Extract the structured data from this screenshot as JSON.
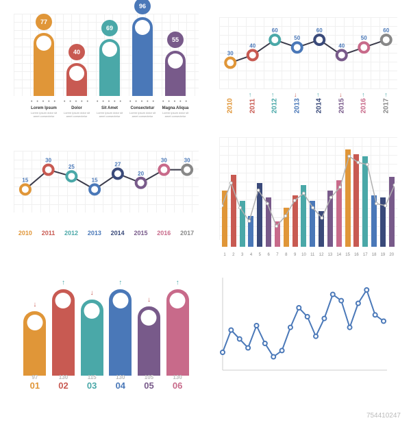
{
  "palette": {
    "orange": "#e09638",
    "red": "#c85a52",
    "teal": "#4aa8a8",
    "blue": "#4a78b8",
    "navy": "#3a4a7a",
    "purple": "#785a8a",
    "pink": "#c86a8a",
    "grey": "#888888",
    "grid": "#f0f0f0",
    "bg": "#ffffff"
  },
  "panel1": {
    "type": "bar",
    "ylim": [
      0,
      100
    ],
    "bars": [
      {
        "value": 77,
        "color": "#e09638",
        "label": "Lorem Ipsum"
      },
      {
        "value": 40,
        "color": "#c85a52",
        "label": "Dolor"
      },
      {
        "value": 69,
        "color": "#4aa8a8",
        "label": "Sit Amet"
      },
      {
        "value": 96,
        "color": "#4a78b8",
        "label": "Consectetur"
      },
      {
        "value": 55,
        "color": "#785a8a",
        "label": "Magna Aliqua"
      }
    ],
    "desc_text": "Lorem ipsum dolor sit amet consectetur",
    "dots": "• • • • •"
  },
  "panel2": {
    "type": "line",
    "ylim": [
      0,
      80
    ],
    "years": [
      "2010",
      "2011",
      "2012",
      "2013",
      "2014",
      "2015",
      "2016",
      "2017"
    ],
    "year_colors": [
      "#e09638",
      "#c85a52",
      "#4aa8a8",
      "#4a78b8",
      "#3a4a7a",
      "#785a8a",
      "#c86a8a",
      "#888888"
    ],
    "values": [
      30,
      40,
      60,
      50,
      60,
      40,
      50,
      60
    ],
    "arrows": [
      "",
      "↑",
      "↑",
      "↓",
      "↑",
      "↓",
      "↑",
      "↑"
    ],
    "marker_colors": [
      "#e09638",
      "#c85a52",
      "#4aa8a8",
      "#4a78b8",
      "#3a4a7a",
      "#785a8a",
      "#c86a8a",
      "#888888"
    ],
    "line_color": "#3a3a4a",
    "value_label_color": "#4a78b8"
  },
  "panel3": {
    "type": "line",
    "ylim": [
      0,
      40
    ],
    "years": [
      "2010",
      "2011",
      "2012",
      "2013",
      "2014",
      "2015",
      "2016",
      "2017"
    ],
    "year_colors": [
      "#e09638",
      "#c85a52",
      "#4aa8a8",
      "#4a78b8",
      "#3a4a7a",
      "#785a8a",
      "#c86a8a",
      "#888888"
    ],
    "values": [
      15,
      30,
      25,
      15,
      27,
      20,
      30,
      30
    ],
    "marker_colors": [
      "#e09638",
      "#c85a52",
      "#4aa8a8",
      "#4a78b8",
      "#3a4a7a",
      "#785a8a",
      "#c86a8a",
      "#888888"
    ],
    "line_color": "#3a3a4a",
    "value_label_color": "#4a78b8"
  },
  "panel4": {
    "type": "bar+line",
    "ylim": [
      0,
      100
    ],
    "x_labels": [
      "1",
      "2",
      "3",
      "4",
      "5",
      "6",
      "7",
      "8",
      "9",
      "10",
      "11",
      "12",
      "13",
      "14",
      "15",
      "16",
      "17",
      "18",
      "19",
      "20"
    ],
    "bars": [
      55,
      70,
      45,
      30,
      62,
      48,
      25,
      38,
      50,
      60,
      45,
      35,
      55,
      65,
      95,
      90,
      88,
      50,
      48,
      68
    ],
    "bar_colors": [
      "#e09638",
      "#c85a52",
      "#4aa8a8",
      "#4a78b8",
      "#3a4a7a",
      "#785a8a",
      "#c86a8a",
      "#e09638",
      "#c85a52",
      "#4aa8a8",
      "#4a78b8",
      "#3a4a7a",
      "#785a8a",
      "#c86a8a",
      "#e09638",
      "#c85a52",
      "#4aa8a8",
      "#4a78b8",
      "#3a4a7a",
      "#785a8a"
    ],
    "line_values": [
      40,
      62,
      38,
      25,
      55,
      42,
      20,
      30,
      45,
      52,
      38,
      28,
      48,
      58,
      88,
      82,
      80,
      42,
      40,
      60
    ],
    "line_color": "#b0b0b0"
  },
  "panel5": {
    "type": "bar",
    "ylim": [
      0,
      150
    ],
    "bars": [
      {
        "idx": "01",
        "value": 97,
        "color": "#e09638",
        "arrow": "↓",
        "arrow_color": "#c85a52"
      },
      {
        "idx": "02",
        "value": 130,
        "color": "#c85a52",
        "arrow": "↑",
        "arrow_color": "#4aa8a8"
      },
      {
        "idx": "03",
        "value": 115,
        "color": "#4aa8a8",
        "arrow": "↓",
        "arrow_color": "#c85a52"
      },
      {
        "idx": "04",
        "value": 130,
        "color": "#4a78b8",
        "arrow": "↑",
        "arrow_color": "#4aa8a8"
      },
      {
        "idx": "05",
        "value": 105,
        "color": "#785a8a",
        "arrow": "↓",
        "arrow_color": "#c85a52"
      },
      {
        "idx": "06",
        "value": 130,
        "color": "#c86a8a",
        "arrow": "↑",
        "arrow_color": "#4aa8a8"
      }
    ]
  },
  "panel6": {
    "type": "line",
    "ylim": [
      0,
      100
    ],
    "x_count": 20,
    "values": [
      20,
      45,
      35,
      25,
      50,
      30,
      15,
      22,
      48,
      70,
      60,
      38,
      58,
      85,
      78,
      48,
      75,
      90,
      62,
      55
    ],
    "line_color": "#4a78b8",
    "marker_fill": "#ffffff",
    "marker_stroke": "#4a78b8",
    "axis_color": "#cccccc"
  },
  "watermark": "754410247"
}
